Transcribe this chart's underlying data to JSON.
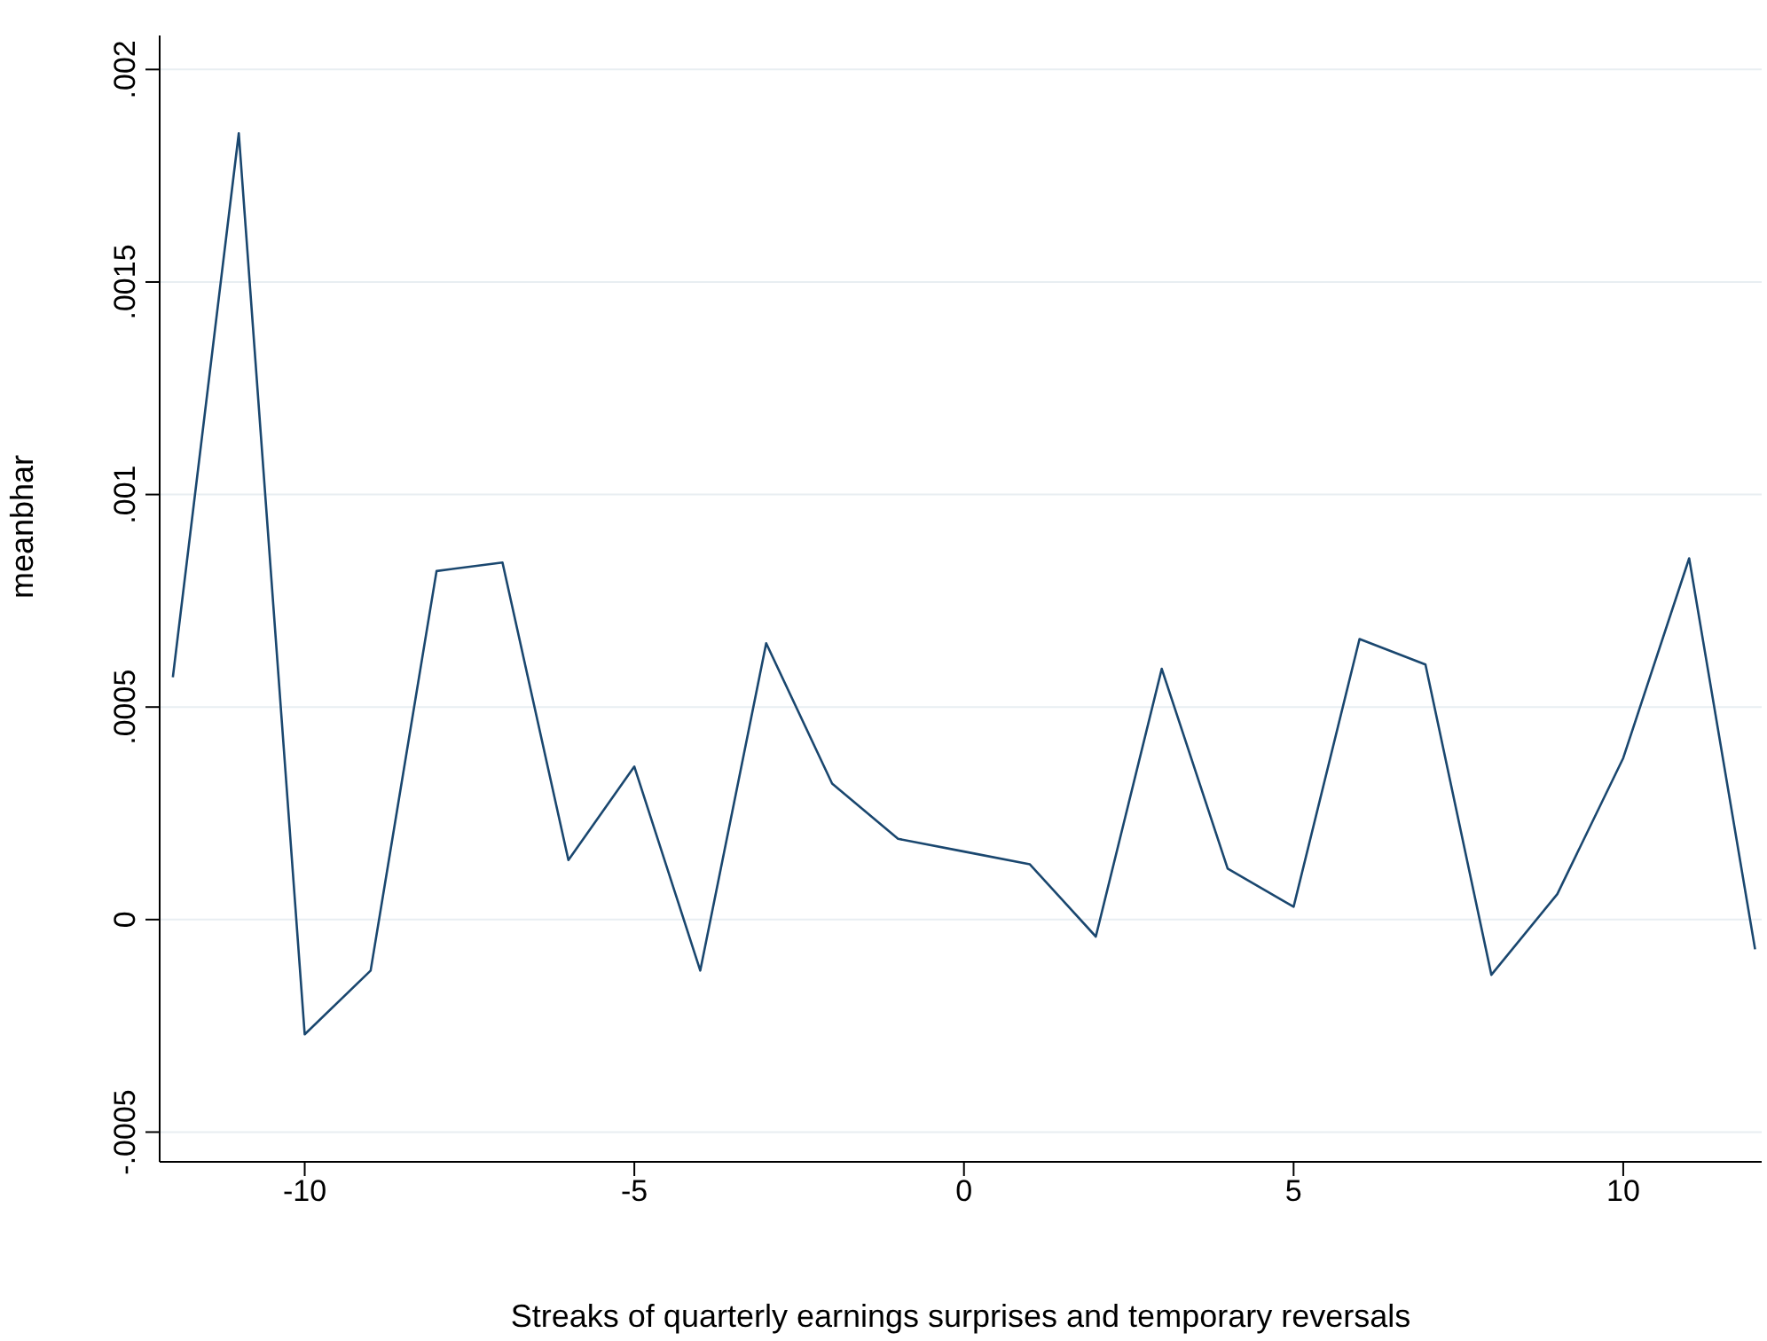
{
  "chart_data": {
    "type": "line",
    "xlabel": "Streaks of quarterly earnings surprises and temporary reversals",
    "ylabel": "meanbhar",
    "x": [
      -12,
      -11,
      -10,
      -9,
      -8,
      -7,
      -6,
      -5,
      -4,
      -3,
      -2,
      -1,
      0,
      1,
      2,
      3,
      4,
      5,
      6,
      7,
      8,
      9,
      10,
      11,
      12
    ],
    "series": [
      {
        "color": "#1a476f",
        "values": [
          0.00057,
          0.00185,
          -0.00027,
          -0.00012,
          0.00082,
          0.00084,
          0.00014,
          0.00036,
          -0.00012,
          0.00065,
          0.00032,
          0.00019,
          0.00016,
          0.00013,
          -4e-05,
          0.00059,
          0.00012,
          3e-05,
          0.00066,
          0.0006,
          -0.00013,
          6e-05,
          0.00038,
          0.00085,
          -7e-05
        ]
      }
    ],
    "xlim": [
      -12.2,
      12.1
    ],
    "xticks": [
      -10,
      -5,
      0,
      5,
      10
    ],
    "ylim": [
      -0.00057,
      0.00208
    ],
    "yticks": [
      {
        "value": -0.0005,
        "label": "-.0005"
      },
      {
        "value": 0,
        "label": "0"
      },
      {
        "value": 0.0005,
        "label": ".0005"
      },
      {
        "value": 0.001,
        "label": ".001"
      },
      {
        "value": 0.0015,
        "label": ".0015"
      },
      {
        "value": 0.002,
        "label": ".002"
      }
    ],
    "grid": "y",
    "marker": "none",
    "line_style": "solid",
    "legend": false
  }
}
